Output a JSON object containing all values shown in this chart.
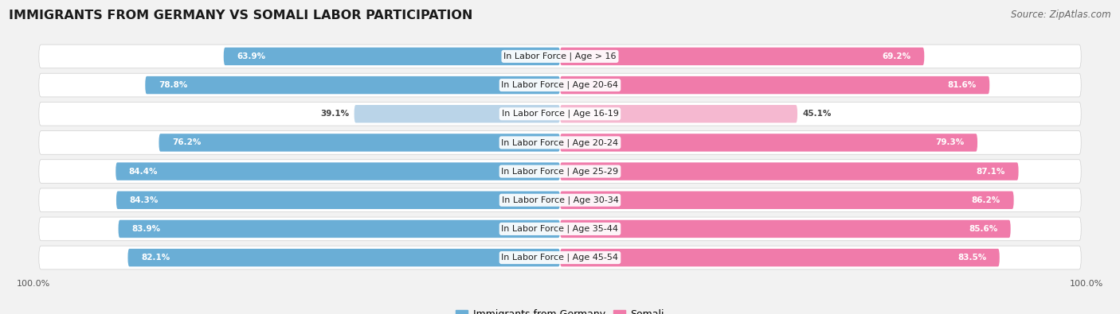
{
  "title": "IMMIGRANTS FROM GERMANY VS SOMALI LABOR PARTICIPATION",
  "source": "Source: ZipAtlas.com",
  "categories": [
    "In Labor Force | Age > 16",
    "In Labor Force | Age 20-64",
    "In Labor Force | Age 16-19",
    "In Labor Force | Age 20-24",
    "In Labor Force | Age 25-29",
    "In Labor Force | Age 30-34",
    "In Labor Force | Age 35-44",
    "In Labor Force | Age 45-54"
  ],
  "germany_values": [
    63.9,
    78.8,
    39.1,
    76.2,
    84.4,
    84.3,
    83.9,
    82.1
  ],
  "somali_values": [
    69.2,
    81.6,
    45.1,
    79.3,
    87.1,
    86.2,
    85.6,
    83.5
  ],
  "germany_color": "#6aaed6",
  "germany_color_light": "#bad4e8",
  "somali_color": "#f07baa",
  "somali_color_light": "#f5b8d0",
  "background_color": "#f2f2f2",
  "row_bg_even": "#eaeaea",
  "row_bg_odd": "#f7f7f7",
  "title_fontsize": 11.5,
  "source_fontsize": 8.5,
  "label_fontsize": 8,
  "value_fontsize": 7.5,
  "legend_fontsize": 9,
  "axis_tick_fontsize": 8
}
